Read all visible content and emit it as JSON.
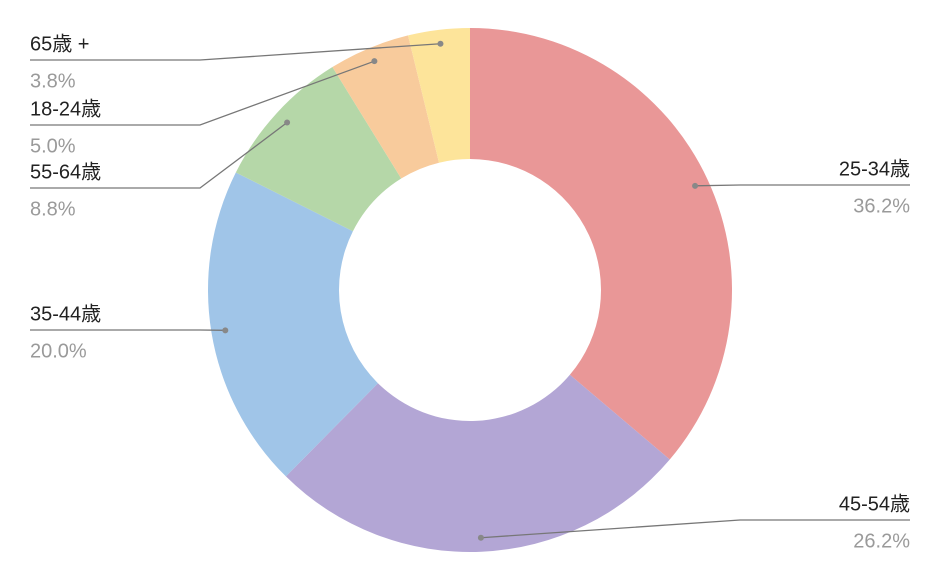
{
  "chart_data": {
    "type": "donut",
    "categories": [
      "25-34歳",
      "45-54歳",
      "35-44歳",
      "55-64歳",
      "18-24歳",
      "65歳 +"
    ],
    "values": [
      36.2,
      26.2,
      20.0,
      8.8,
      5.0,
      3.8
    ],
    "value_labels": [
      "36.2%",
      "26.2%",
      "20.0%",
      "8.8%",
      "5.0%",
      "3.8%"
    ],
    "colors": [
      "#e99797",
      "#b3a6d5",
      "#a0c5e8",
      "#b5d7a8",
      "#f8cb9c",
      "#fde49a"
    ]
  }
}
